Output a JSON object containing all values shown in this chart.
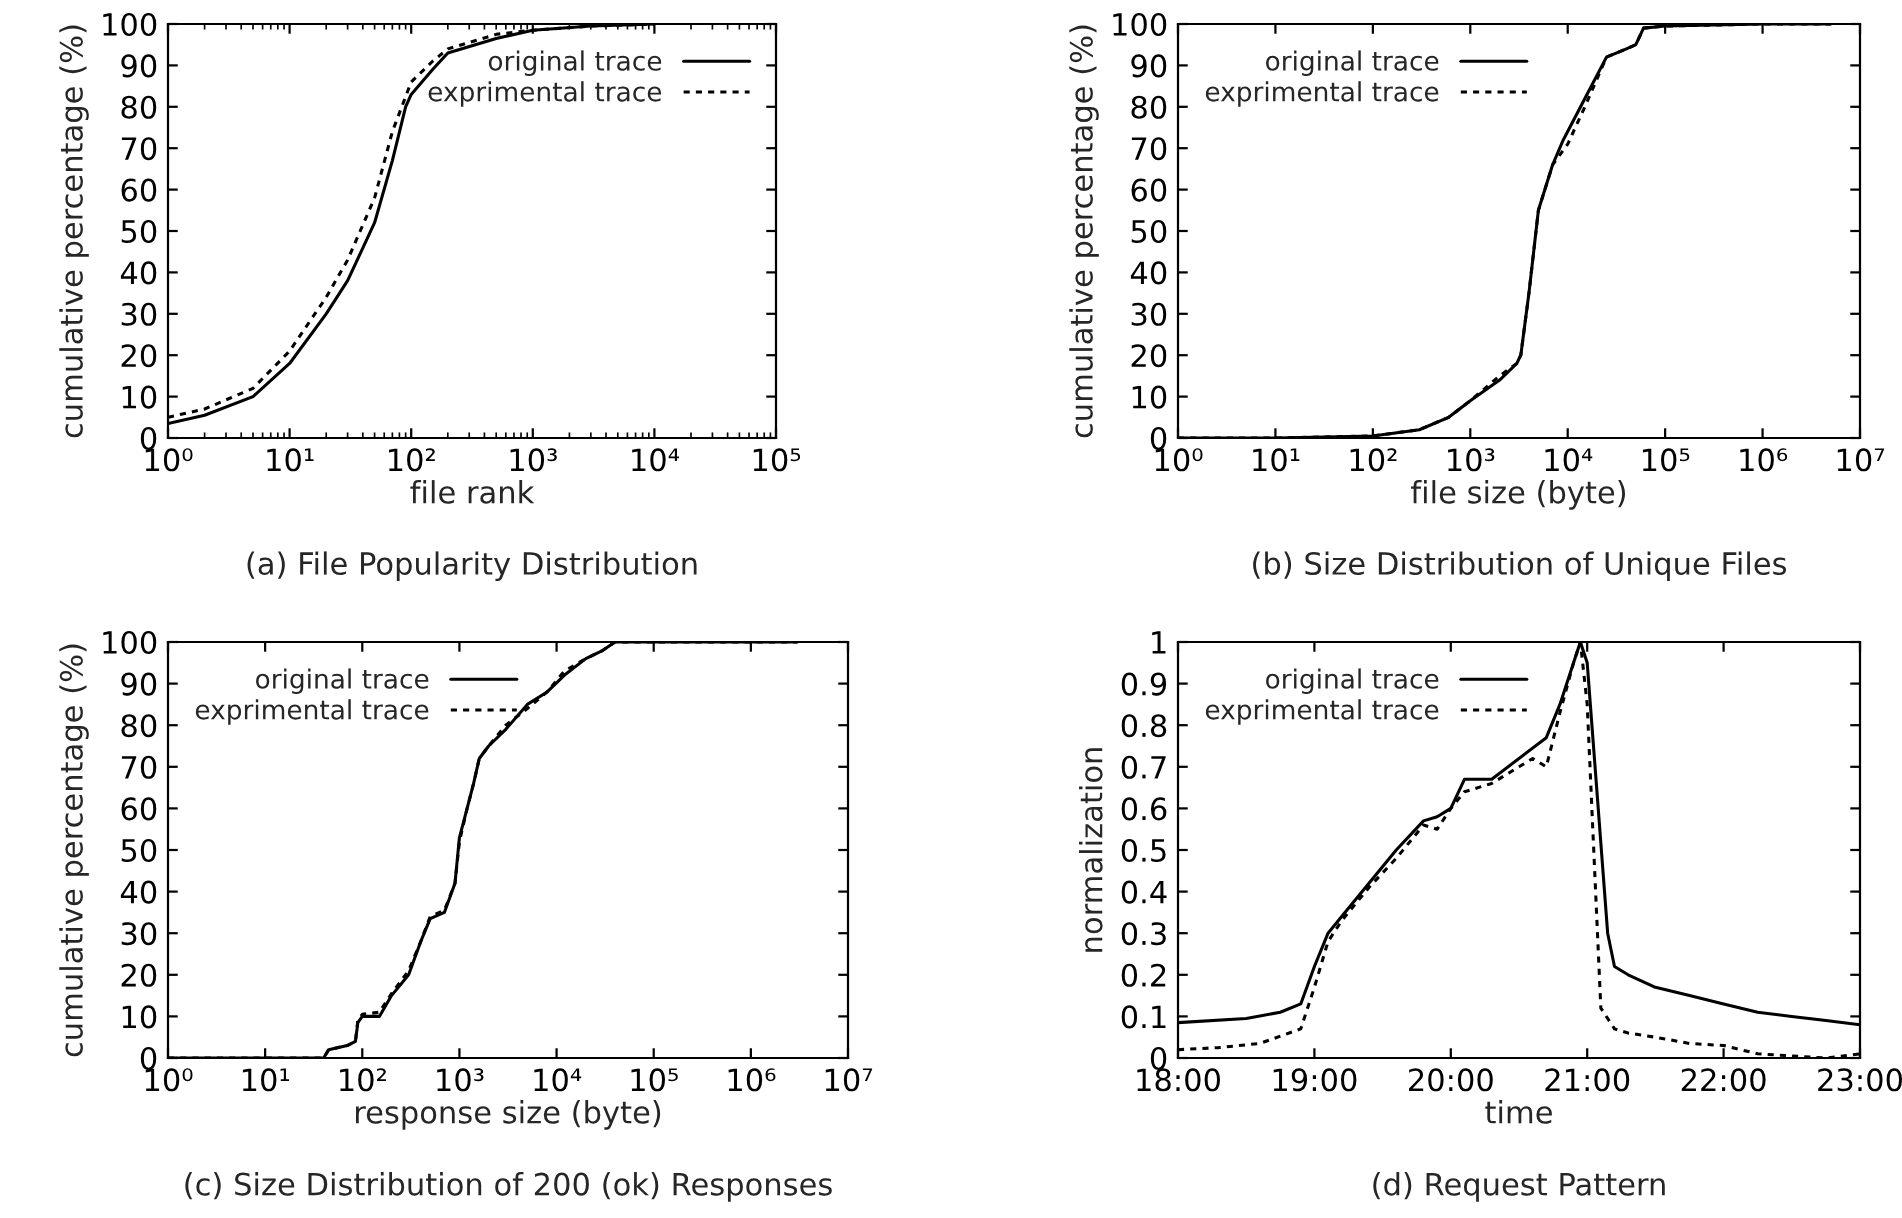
{
  "chart_data": [
    {
      "type": "line",
      "title": "(a) File Popularity Distribution",
      "xlabel": "file rank",
      "ylabel": "cumulative percentage (%)",
      "log": "x",
      "legend": "top right",
      "grid": false,
      "xlim": [
        1,
        100000
      ],
      "xticks": [
        {
          "value": 1,
          "label": "10⁰"
        },
        {
          "value": 10,
          "label": "10¹"
        },
        {
          "value": 100,
          "label": "10²"
        },
        {
          "value": 1000,
          "label": "10³"
        },
        {
          "value": 10000,
          "label": "10⁴"
        },
        {
          "value": 100000,
          "label": "10⁵"
        }
      ],
      "ylim": [
        0,
        100
      ],
      "yticks": [
        0,
        10,
        20,
        30,
        40,
        50,
        60,
        70,
        80,
        90,
        100
      ],
      "series": [
        {
          "name": "original trace",
          "color": "#000000",
          "line_style": "solid",
          "x": [
            1,
            2,
            5,
            10,
            20,
            30,
            50,
            70,
            90,
            100,
            150,
            200,
            500,
            1000,
            3000,
            10000
          ],
          "values": [
            3.5,
            5.5,
            10,
            18,
            30,
            38,
            52,
            67,
            80,
            83,
            89,
            93,
            96.5,
            98.5,
            99.5,
            100
          ]
        },
        {
          "name": "exprimental trace",
          "color": "#000000",
          "line_style": "dotted",
          "x": [
            1,
            2,
            5,
            10,
            20,
            30,
            50,
            70,
            100,
            150,
            200,
            500,
            1000,
            3000,
            10000
          ],
          "values": [
            5,
            7,
            12,
            21,
            34,
            43,
            58,
            74,
            86,
            91,
            94,
            97.5,
            98.5,
            99.5,
            100
          ]
        }
      ]
    },
    {
      "type": "line",
      "title": "(b) Size Distribution of Unique Files",
      "xlabel": "file size (byte)",
      "ylabel": "cumulative percentage (%)",
      "log": "x",
      "legend": "top left",
      "grid": false,
      "xlim": [
        1,
        10000000
      ],
      "xticks": [
        {
          "value": 1,
          "label": "10⁰"
        },
        {
          "value": 10,
          "label": "10¹"
        },
        {
          "value": 100,
          "label": "10²"
        },
        {
          "value": 1000,
          "label": "10³"
        },
        {
          "value": 10000,
          "label": "10⁴"
        },
        {
          "value": 100000,
          "label": "10⁵"
        },
        {
          "value": 1000000,
          "label": "10⁶"
        },
        {
          "value": 10000000,
          "label": "10⁷"
        }
      ],
      "ylim": [
        0,
        100
      ],
      "yticks": [
        0,
        10,
        20,
        30,
        40,
        50,
        60,
        70,
        80,
        90,
        100
      ],
      "series": [
        {
          "name": "original trace",
          "color": "#000000",
          "line_style": "solid",
          "x": [
            1,
            10,
            100,
            300,
            600,
            1000,
            2000,
            3000,
            3300,
            4000,
            5000,
            7000,
            9000,
            15000,
            25000,
            40000,
            50000,
            60000,
            100000,
            1000000,
            5000000
          ],
          "values": [
            0,
            0,
            0.5,
            2,
            5,
            9,
            14,
            18,
            20,
            35,
            55,
            66,
            72,
            82,
            92,
            94,
            95,
            99,
            99.5,
            100,
            100
          ]
        },
        {
          "name": "exprimental trace",
          "color": "#000000",
          "line_style": "dotted",
          "x": [
            1,
            10,
            100,
            300,
            600,
            1000,
            2000,
            3000,
            3300,
            4000,
            5000,
            7000,
            10000,
            15000,
            25000,
            40000,
            50000,
            60000,
            100000,
            1000000,
            5000000
          ],
          "values": [
            0,
            0,
            0.5,
            2,
            5,
            9,
            15,
            18,
            20,
            35,
            55,
            66,
            71,
            80,
            92,
            94,
            95,
            99,
            99.5,
            100,
            100
          ]
        }
      ]
    },
    {
      "type": "line",
      "title": "(c) Size Distribution of 200 (ok) Responses",
      "xlabel": "response size (byte)",
      "ylabel": "cumulative percentage (%)",
      "log": "x",
      "legend": "top left",
      "grid": false,
      "xlim": [
        1,
        10000000
      ],
      "xticks": [
        {
          "value": 1,
          "label": "10⁰"
        },
        {
          "value": 10,
          "label": "10¹"
        },
        {
          "value": 100,
          "label": "10²"
        },
        {
          "value": 1000,
          "label": "10³"
        },
        {
          "value": 10000,
          "label": "10⁴"
        },
        {
          "value": 100000,
          "label": "10⁵"
        },
        {
          "value": 1000000,
          "label": "10⁶"
        },
        {
          "value": 10000000,
          "label": "10⁷"
        }
      ],
      "ylim": [
        0,
        100
      ],
      "yticks": [
        0,
        10,
        20,
        30,
        40,
        50,
        60,
        70,
        80,
        90,
        100
      ],
      "series": [
        {
          "name": "original trace",
          "color": "#000000",
          "line_style": "solid",
          "x": [
            1,
            40,
            45,
            70,
            85,
            90,
            100,
            150,
            200,
            300,
            400,
            500,
            700,
            900,
            1000,
            1200,
            1400,
            1600,
            2000,
            3000,
            5000,
            8000,
            12000,
            20000,
            30000,
            40000,
            3000000
          ],
          "values": [
            0,
            0,
            2,
            3,
            4,
            8.5,
            10,
            10,
            15,
            20,
            28,
            33.5,
            35,
            42,
            53,
            60,
            66,
            72,
            75,
            79,
            85,
            88,
            92,
            96,
            98,
            100,
            100
          ]
        },
        {
          "name": "exprimental trace",
          "color": "#000000",
          "line_style": "dotted",
          "x": [
            1,
            40,
            45,
            70,
            85,
            90,
            100,
            150,
            200,
            300,
            400,
            500,
            700,
            900,
            1000,
            1200,
            1400,
            1600,
            2000,
            3000,
            5000,
            8000,
            12000,
            20000,
            30000,
            40000,
            3000000
          ],
          "values": [
            0,
            0,
            2,
            3,
            4,
            9,
            10.5,
            11,
            15.5,
            21,
            28,
            34,
            35.5,
            42,
            52,
            60,
            66,
            72,
            75,
            80,
            84,
            88,
            93,
            96,
            98,
            100,
            100
          ]
        }
      ]
    },
    {
      "type": "line",
      "title": "(d) Request Pattern",
      "xlabel": "time",
      "ylabel": "normalization",
      "legend": "top left",
      "grid": false,
      "xlim": [
        18,
        23
      ],
      "xticks": [
        {
          "value": 18,
          "label": "18:00"
        },
        {
          "value": 19,
          "label": "19:00"
        },
        {
          "value": 20,
          "label": "20:00"
        },
        {
          "value": 21,
          "label": "21:00"
        },
        {
          "value": 22,
          "label": "22:00"
        },
        {
          "value": 23,
          "label": "23:00"
        }
      ],
      "ylim": [
        0,
        1
      ],
      "yticks": [
        0,
        0.1,
        0.2,
        0.3,
        0.4,
        0.5,
        0.6,
        0.7,
        0.8,
        0.9,
        1
      ],
      "series": [
        {
          "name": "original trace",
          "color": "#000000",
          "line_style": "solid",
          "x": [
            18.0,
            18.5,
            18.75,
            18.9,
            19.0,
            19.1,
            19.2,
            19.4,
            19.6,
            19.8,
            19.9,
            20.0,
            20.1,
            20.3,
            20.5,
            20.7,
            20.8,
            20.9,
            20.95,
            21.0,
            21.15,
            21.2,
            21.3,
            21.5,
            21.75,
            22.0,
            22.25,
            22.5,
            22.75,
            23.0
          ],
          "values": [
            0.085,
            0.095,
            0.11,
            0.13,
            0.22,
            0.3,
            0.34,
            0.42,
            0.5,
            0.57,
            0.58,
            0.6,
            0.67,
            0.67,
            0.72,
            0.77,
            0.85,
            0.95,
            1.0,
            0.95,
            0.3,
            0.22,
            0.2,
            0.17,
            0.15,
            0.13,
            0.11,
            0.1,
            0.09,
            0.08
          ]
        },
        {
          "name": "exprimental trace",
          "color": "#000000",
          "line_style": "dotted",
          "x": [
            18.0,
            18.3,
            18.6,
            18.9,
            19.0,
            19.1,
            19.2,
            19.4,
            19.6,
            19.8,
            19.9,
            20.0,
            20.1,
            20.3,
            20.5,
            20.6,
            20.7,
            20.8,
            20.9,
            20.95,
            21.0,
            21.1,
            21.2,
            21.3,
            21.5,
            21.75,
            22.0,
            22.25,
            22.5,
            22.75,
            23.0
          ],
          "values": [
            0.02,
            0.025,
            0.035,
            0.07,
            0.17,
            0.28,
            0.33,
            0.41,
            0.48,
            0.56,
            0.55,
            0.6,
            0.64,
            0.66,
            0.7,
            0.72,
            0.7,
            0.83,
            0.95,
            1.0,
            0.85,
            0.12,
            0.07,
            0.06,
            0.05,
            0.035,
            0.03,
            0.01,
            0.005,
            0.0,
            0.01
          ]
        }
      ]
    }
  ]
}
